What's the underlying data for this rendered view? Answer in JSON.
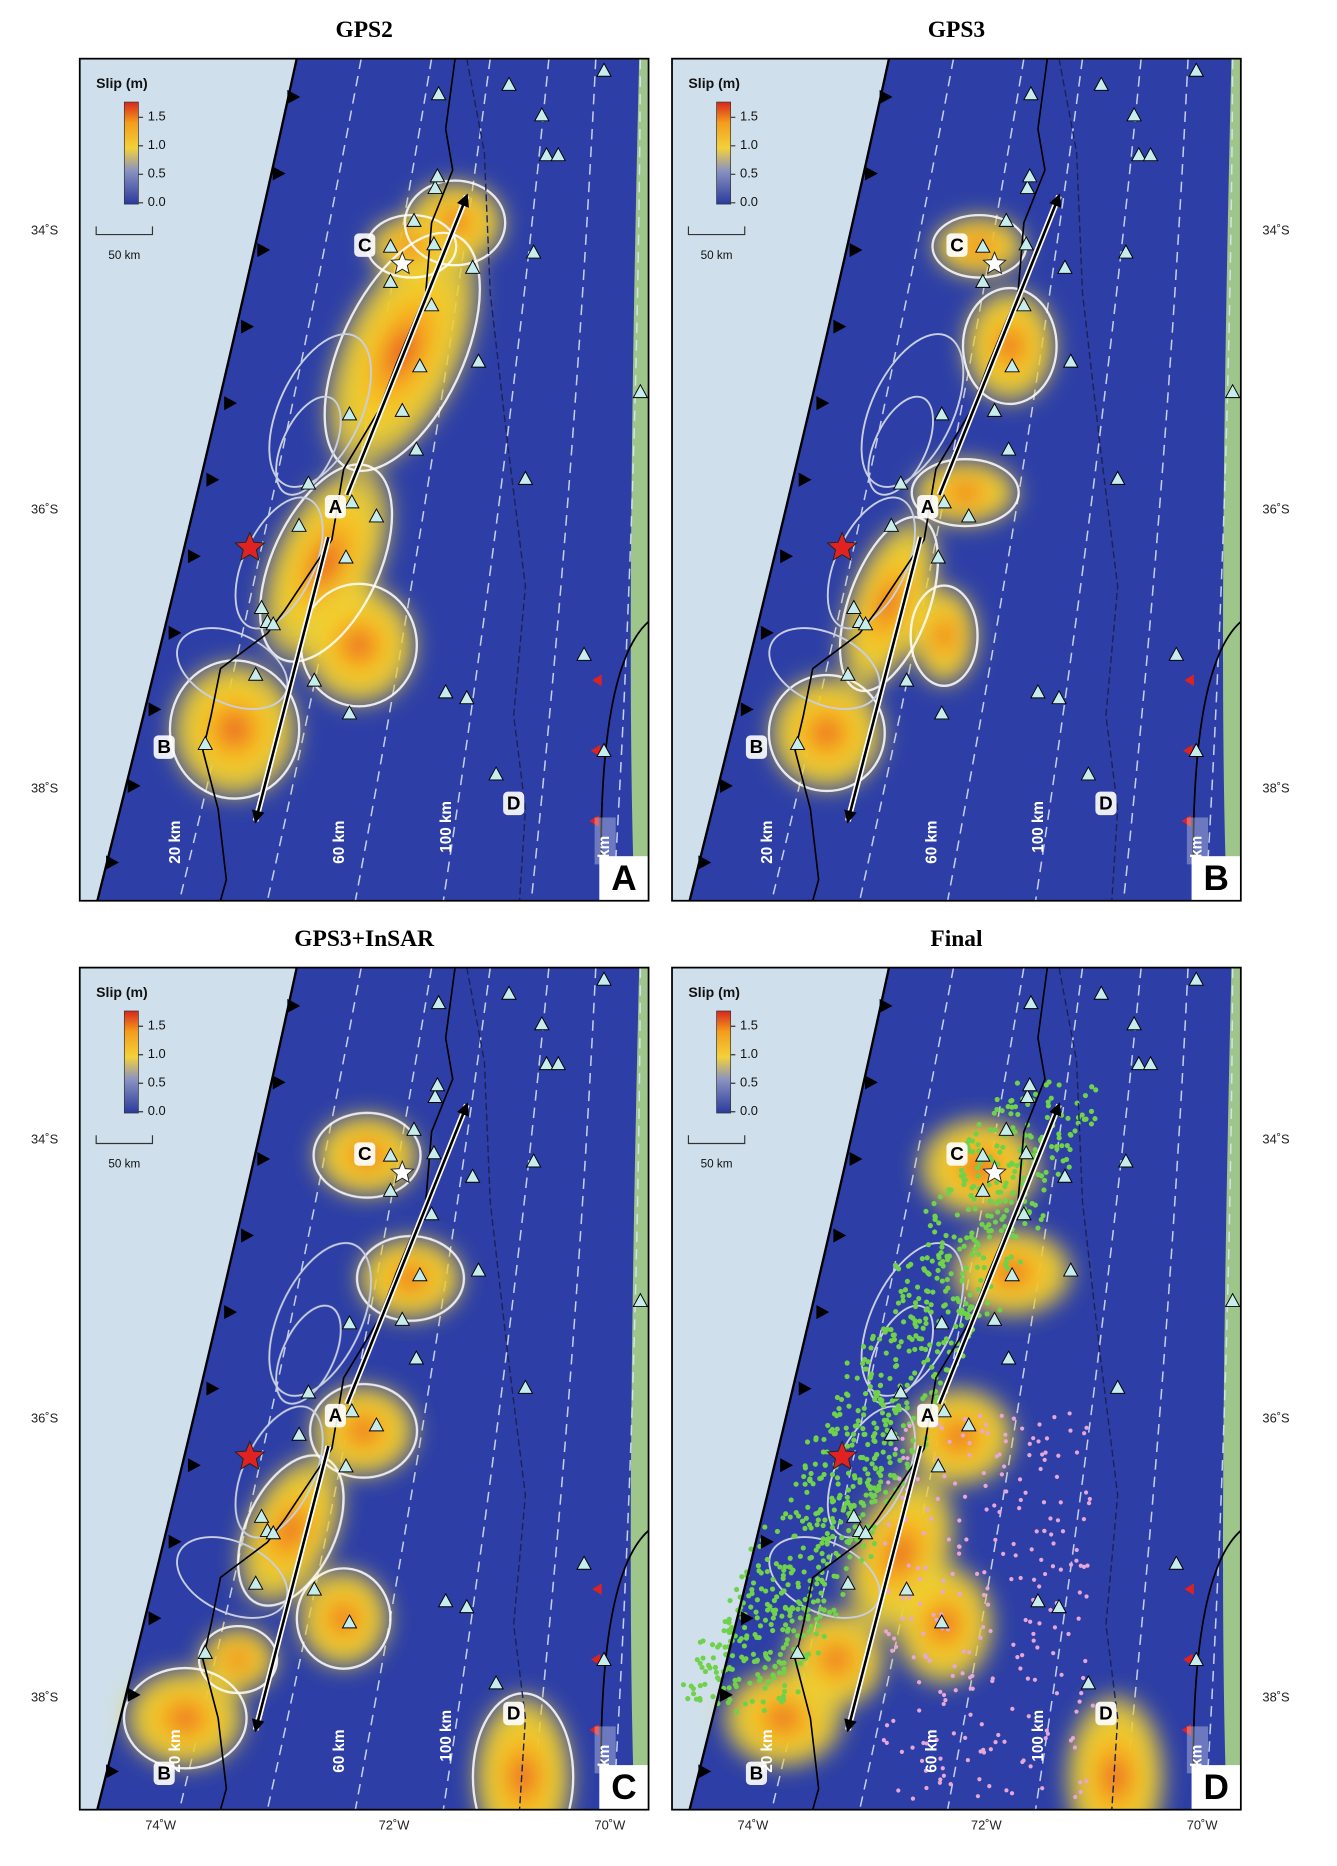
{
  "panels": [
    {
      "title": "GPS2",
      "letter": "A"
    },
    {
      "title": "GPS3",
      "letter": "B"
    },
    {
      "title": "GPS3+InSAR",
      "letter": "C"
    },
    {
      "title": "Final",
      "letter": "D"
    }
  ],
  "legend": {
    "title": "Slip (m)",
    "ticks": [
      "1.5",
      "1.0",
      "0.5",
      "0.0"
    ],
    "scale": "50 km"
  },
  "depth_labels": [
    "20 km",
    "60 km",
    "100 km",
    "km"
  ],
  "region_labels": [
    "A",
    "B",
    "C",
    "D"
  ],
  "latitude_labels": [
    "34˚S",
    "36˚S",
    "38˚S"
  ],
  "longitude_labels": [
    "74˚W",
    "72˚W",
    "70˚W"
  ]
}
